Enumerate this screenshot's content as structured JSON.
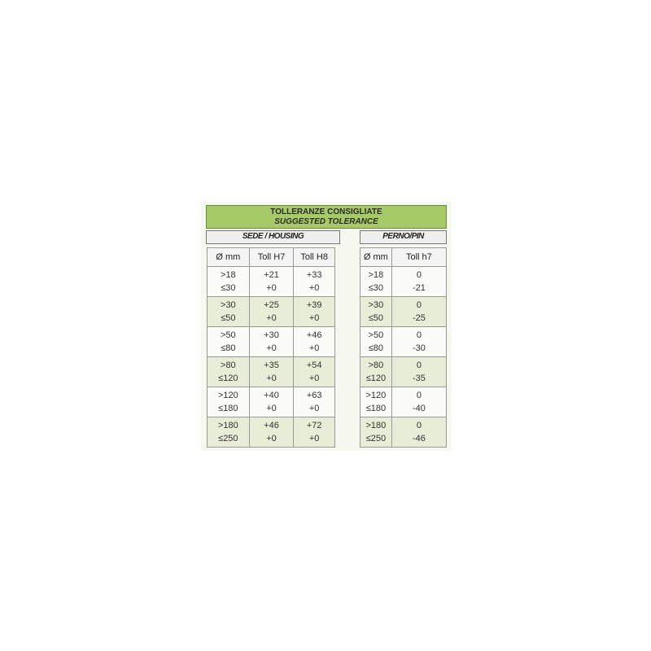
{
  "title": {
    "line1": "TOLLERANZE CONSIGLIATE",
    "line2": "SUGGESTED TOLERANCE"
  },
  "housing": {
    "label": "SEDE / HOUSING",
    "headers": [
      "Ø mm",
      "Toll H7",
      "Toll H8"
    ],
    "rows": [
      [
        ">18",
        "≤30",
        "+21",
        "+0",
        "+33",
        "+0"
      ],
      [
        ">30",
        "≤50",
        "+25",
        "+0",
        "+39",
        "+0"
      ],
      [
        ">50",
        "≤80",
        "+30",
        "+0",
        "+46",
        "+0"
      ],
      [
        ">80",
        "≤120",
        "+35",
        "+0",
        "+54",
        "+0"
      ],
      [
        ">120",
        "≤180",
        "+40",
        "+0",
        "+63",
        "+0"
      ],
      [
        ">180",
        "≤250",
        "+46",
        "+0",
        "+72",
        "+0"
      ]
    ]
  },
  "pin": {
    "label": "PERNO/PIN",
    "headers": [
      "Ø mm",
      "Toll h7"
    ],
    "rows": [
      [
        ">18",
        "≤30",
        "0",
        "-21"
      ],
      [
        ">30",
        "≤50",
        "0",
        "-25"
      ],
      [
        ">50",
        "≤80",
        "0",
        "-30"
      ],
      [
        ">80",
        "≤120",
        "0",
        "-35"
      ],
      [
        ">120",
        "≤180",
        "0",
        "-40"
      ],
      [
        ">180",
        "≤250",
        "0",
        "-46"
      ]
    ]
  },
  "colors": {
    "header_green": "#a6cb66",
    "alt_row": "#e7edd6"
  }
}
